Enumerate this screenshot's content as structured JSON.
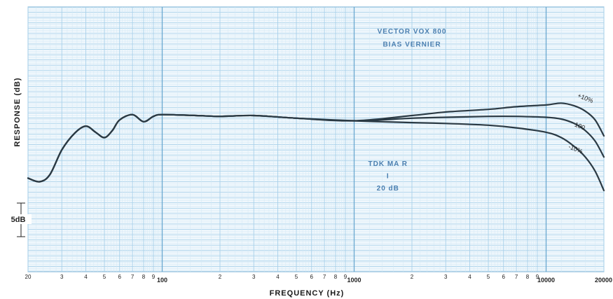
{
  "chart_data": {
    "type": "line",
    "xlabel": "FREQUENCY (Hz)",
    "ylabel": "RESPONSE (dB)",
    "x_scale": "log",
    "xlim": [
      20,
      20000
    ],
    "ylim": [
      -22,
      8
    ],
    "grid": true,
    "x_tick_labels": [
      {
        "x": 20,
        "label": "20"
      },
      {
        "x": 30,
        "label": "3"
      },
      {
        "x": 40,
        "label": "4"
      },
      {
        "x": 50,
        "label": "5"
      },
      {
        "x": 60,
        "label": "6"
      },
      {
        "x": 70,
        "label": "7"
      },
      {
        "x": 80,
        "label": "8"
      },
      {
        "x": 90,
        "label": "9"
      },
      {
        "x": 100,
        "label": "100"
      },
      {
        "x": 200,
        "label": "2"
      },
      {
        "x": 300,
        "label": "3"
      },
      {
        "x": 400,
        "label": "4"
      },
      {
        "x": 500,
        "label": "5"
      },
      {
        "x": 600,
        "label": "6"
      },
      {
        "x": 700,
        "label": "7"
      },
      {
        "x": 800,
        "label": "8"
      },
      {
        "x": 900,
        "label": "9"
      },
      {
        "x": 1000,
        "label": "1000"
      },
      {
        "x": 2000,
        "label": "2"
      },
      {
        "x": 3000,
        "label": "3"
      },
      {
        "x": 4000,
        "label": "4"
      },
      {
        "x": 5000,
        "label": "5"
      },
      {
        "x": 6000,
        "label": "6"
      },
      {
        "x": 7000,
        "label": "7"
      },
      {
        "x": 8000,
        "label": "8"
      },
      {
        "x": 9000,
        "label": "9"
      },
      {
        "x": 10000,
        "label": "10000"
      },
      {
        "x": 20000,
        "label": "20000"
      }
    ],
    "scale_bar": {
      "label": "5dB",
      "db": 5
    },
    "annotations": [
      {
        "text": "VECTOR VOX 800",
        "x": 2000,
        "y": 5
      },
      {
        "text": "BIAS VERNIER",
        "x": 2000,
        "y": 3.5
      },
      {
        "text": "TDK MA R",
        "x": 1500,
        "y": -10
      },
      {
        "text": "I",
        "x": 1500,
        "y": -11.4
      },
      {
        "text": "20 dB",
        "x": 1500,
        "y": -12.8
      }
    ],
    "series": [
      {
        "name": "+10%",
        "x": [
          20,
          23,
          26,
          30,
          35,
          40,
          45,
          50,
          55,
          60,
          70,
          80,
          90,
          100,
          150,
          200,
          300,
          500,
          1000,
          2000,
          3000,
          5000,
          7000,
          10000,
          12000,
          14000,
          16000,
          18000,
          20000
        ],
        "y": [
          -11.4,
          -11.8,
          -11.0,
          -8.2,
          -6.3,
          -5.5,
          -6.2,
          -6.8,
          -6.0,
          -4.8,
          -4.2,
          -5.0,
          -4.4,
          -4.2,
          -4.3,
          -4.4,
          -4.3,
          -4.6,
          -4.9,
          -4.3,
          -3.9,
          -3.6,
          -3.3,
          -3.1,
          -2.9,
          -3.2,
          -3.8,
          -4.8,
          -6.6
        ]
      },
      {
        "name": "100",
        "x": [
          20,
          23,
          26,
          30,
          35,
          40,
          45,
          50,
          55,
          60,
          70,
          80,
          90,
          100,
          150,
          200,
          300,
          500,
          1000,
          2000,
          3000,
          5000,
          7000,
          10000,
          12000,
          14000,
          16000,
          18000,
          20000
        ],
        "y": [
          -11.4,
          -11.8,
          -11.0,
          -8.2,
          -6.3,
          -5.5,
          -6.2,
          -6.8,
          -6.0,
          -4.8,
          -4.2,
          -5.0,
          -4.4,
          -4.2,
          -4.3,
          -4.4,
          -4.3,
          -4.6,
          -4.9,
          -4.6,
          -4.5,
          -4.4,
          -4.4,
          -4.5,
          -4.7,
          -5.2,
          -6.0,
          -7.2,
          -9.0
        ]
      },
      {
        "name": "-10%",
        "x": [
          20,
          23,
          26,
          30,
          35,
          40,
          45,
          50,
          55,
          60,
          70,
          80,
          90,
          100,
          150,
          200,
          300,
          500,
          1000,
          2000,
          3000,
          5000,
          7000,
          10000,
          12000,
          14000,
          16000,
          18000,
          20000
        ],
        "y": [
          -11.4,
          -11.8,
          -11.0,
          -8.2,
          -6.3,
          -5.5,
          -6.2,
          -6.8,
          -6.0,
          -4.8,
          -4.2,
          -5.0,
          -4.4,
          -4.2,
          -4.3,
          -4.4,
          -4.3,
          -4.6,
          -4.9,
          -5.1,
          -5.2,
          -5.4,
          -5.7,
          -6.2,
          -6.8,
          -7.8,
          -9.0,
          -10.6,
          -12.8
        ]
      }
    ],
    "series_labels": [
      {
        "text": "+10%",
        "x": 14500,
        "y": -2.2
      },
      {
        "text": "100",
        "x": 14000,
        "y": -5.5
      },
      {
        "text": "-10%",
        "x": 13000,
        "y": -8.0
      }
    ]
  },
  "colors": {
    "grid_major": "#6aa8d0",
    "grid_minor": "#a9d1ea",
    "grid_fine": "#d3e8f5",
    "curve": "#2b3a44",
    "annotation": "#4a7fb0"
  }
}
